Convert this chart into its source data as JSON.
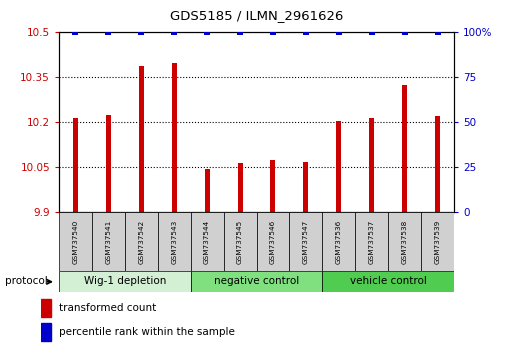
{
  "title": "GDS5185 / ILMN_2961626",
  "samples": [
    "GSM737540",
    "GSM737541",
    "GSM737542",
    "GSM737543",
    "GSM737544",
    "GSM737545",
    "GSM737546",
    "GSM737547",
    "GSM737536",
    "GSM737537",
    "GSM737538",
    "GSM737539"
  ],
  "red_values": [
    10.215,
    10.225,
    10.385,
    10.395,
    10.045,
    10.065,
    10.075,
    10.068,
    10.205,
    10.215,
    10.325,
    10.22
  ],
  "blue_values_pct": [
    100,
    100,
    100,
    100,
    100,
    100,
    100,
    100,
    100,
    100,
    100,
    100
  ],
  "ylim_left": [
    9.9,
    10.5
  ],
  "ylim_right": [
    0,
    100
  ],
  "yticks_left": [
    9.9,
    10.05,
    10.2,
    10.35,
    10.5
  ],
  "yticks_right": [
    0,
    25,
    50,
    75,
    100
  ],
  "ytick_labels_right": [
    "0",
    "25",
    "50",
    "75",
    "100%"
  ],
  "groups": [
    {
      "label": "Wig-1 depletion",
      "start": 0,
      "end": 4,
      "color": "#d4f0d4"
    },
    {
      "label": "negative control",
      "start": 4,
      "end": 8,
      "color": "#80e080"
    },
    {
      "label": "vehicle control",
      "start": 8,
      "end": 12,
      "color": "#50cc50"
    }
  ],
  "bar_color": "#cc0000",
  "dot_color": "#0000cc",
  "bar_width": 0.15,
  "dot_size": 18,
  "sample_box_color": "#d0d0d0",
  "legend_red_label": "transformed count",
  "legend_blue_label": "percentile rank within the sample",
  "protocol_label": "protocol"
}
